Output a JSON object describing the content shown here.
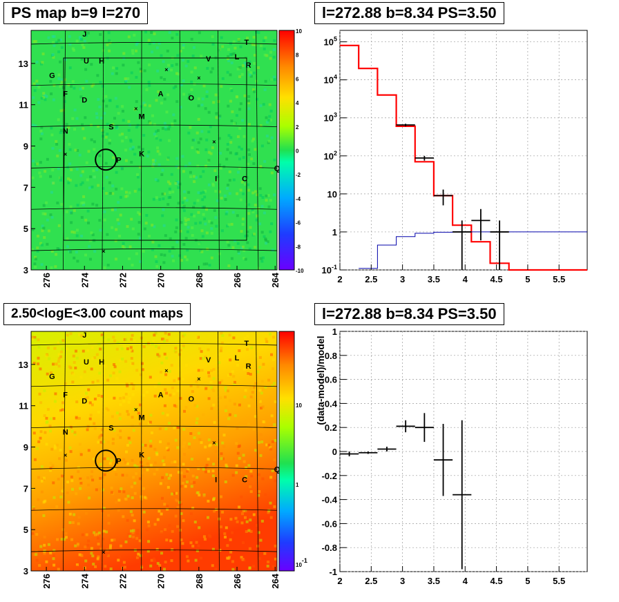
{
  "titles": {
    "ps_map": "PS map b=9 l=270",
    "spectrum": "l=272.88 b=8.34 PS=3.50",
    "count_map": "2.50<logE<3.00 count maps",
    "residual": "l=272.88 b=8.34 PS=3.50"
  },
  "colors": {
    "data": "#000000",
    "model": "#ff0000",
    "background": "#0000aa"
  },
  "chart_data": [
    {
      "type": "heatmap",
      "title": "PS map b=9 l=270",
      "x_ticks": [
        "276",
        "274",
        "272",
        "270",
        "268",
        "266",
        "264"
      ],
      "y_ticks": [
        "3",
        "5",
        "7",
        "9",
        "11",
        "13"
      ],
      "colorbar_ticks": [
        "10",
        "8",
        "6",
        "4",
        "2",
        "0",
        "-2",
        "-4",
        "-6",
        "-8",
        "-10"
      ],
      "zlim": [
        -10,
        10
      ],
      "source_labels": [
        {
          "t": "J",
          "l": 274.0,
          "b": 14.3
        },
        {
          "t": "T",
          "l": 265.5,
          "b": 13.9
        },
        {
          "t": "L",
          "l": 266.0,
          "b": 13.2
        },
        {
          "t": "U",
          "l": 273.9,
          "b": 13.0
        },
        {
          "t": "H",
          "l": 273.1,
          "b": 13.0
        },
        {
          "t": "V",
          "l": 267.5,
          "b": 13.1
        },
        {
          "t": "R",
          "l": 265.4,
          "b": 12.8
        },
        {
          "t": "G",
          "l": 275.7,
          "b": 12.3
        },
        {
          "t": "F",
          "l": 275.0,
          "b": 11.4
        },
        {
          "t": "D",
          "l": 274.0,
          "b": 11.1
        },
        {
          "t": "A",
          "l": 270.0,
          "b": 11.4
        },
        {
          "t": "O",
          "l": 268.4,
          "b": 11.2
        },
        {
          "t": "M",
          "l": 271.0,
          "b": 10.3
        },
        {
          "t": "S",
          "l": 272.6,
          "b": 9.8
        },
        {
          "t": "N",
          "l": 275.0,
          "b": 9.6
        },
        {
          "t": "K",
          "l": 271.0,
          "b": 8.5
        },
        {
          "t": "P",
          "l": 272.2,
          "b": 8.2
        },
        {
          "t": "Q",
          "l": 263.9,
          "b": 7.8
        },
        {
          "t": "I",
          "l": 267.1,
          "b": 7.3
        },
        {
          "t": "C",
          "l": 265.6,
          "b": 7.3
        }
      ],
      "crosses": [
        {
          "l": 269.7,
          "b": 12.7
        },
        {
          "l": 268.0,
          "b": 12.3
        },
        {
          "l": 271.3,
          "b": 10.8
        },
        {
          "l": 267.2,
          "b": 9.2
        },
        {
          "l": 275.0,
          "b": 8.6
        },
        {
          "l": 273.0,
          "b": 3.9
        }
      ],
      "ps_circle": {
        "l": 272.88,
        "b": 8.34
      }
    },
    {
      "type": "line",
      "title": "l=272.88 b=8.34 PS=3.50",
      "x_ticks": [
        "2",
        "2.5",
        "3",
        "3.5",
        "4",
        "4.5",
        "5",
        "5.5"
      ],
      "y_ticks": [
        "10^-1",
        "1",
        "10",
        "10^2",
        "10^3",
        "10^4",
        "10^5"
      ],
      "xlim": [
        2,
        5.95
      ],
      "ylim": [
        0.1,
        200000
      ],
      "y_scale": "log",
      "grid": true,
      "series": [
        {
          "role": "model",
          "bins": [
            [
              2.0,
              2.3,
              80000
            ],
            [
              2.3,
              2.6,
              20000
            ],
            [
              2.6,
              2.9,
              4000
            ],
            [
              2.9,
              3.2,
              600
            ],
            [
              3.2,
              3.5,
              70
            ],
            [
              3.5,
              3.8,
              9
            ],
            [
              3.8,
              4.1,
              1.5
            ],
            [
              4.1,
              4.4,
              0.55
            ],
            [
              4.4,
              4.7,
              0.15
            ],
            [
              4.7,
              5.95,
              0.1
            ]
          ]
        },
        {
          "role": "background",
          "bins": [
            [
              2.3,
              2.6,
              0.11
            ],
            [
              2.6,
              2.9,
              0.45
            ],
            [
              2.9,
              3.2,
              0.75
            ],
            [
              3.2,
              3.5,
              0.92
            ],
            [
              3.5,
              3.8,
              0.98
            ],
            [
              3.8,
              5.95,
              1.0
            ]
          ]
        },
        {
          "role": "data",
          "points": [
            {
              "x": 3.05,
              "y": 650,
              "x0": 2.9,
              "x1": 3.2,
              "y0": 600,
              "y1": 700
            },
            {
              "x": 3.35,
              "y": 88,
              "x0": 3.2,
              "x1": 3.5,
              "y0": 75,
              "y1": 100
            },
            {
              "x": 3.65,
              "y": 9,
              "x0": 3.5,
              "x1": 3.8,
              "y0": 5,
              "y1": 13
            },
            {
              "x": 3.95,
              "y": 1,
              "x0": 3.8,
              "x1": 4.1,
              "y0": 0.1,
              "y1": 2
            },
            {
              "x": 4.25,
              "y": 2,
              "x0": 4.1,
              "x1": 4.4,
              "y0": 0.6,
              "y1": 4
            },
            {
              "x": 4.55,
              "y": 1,
              "x0": 4.4,
              "x1": 4.7,
              "y0": 0.1,
              "y1": 2
            }
          ]
        }
      ]
    },
    {
      "type": "heatmap",
      "title": "2.50<logE<3.00 count maps",
      "x_ticks": [
        "276",
        "274",
        "272",
        "270",
        "268",
        "266",
        "264"
      ],
      "y_ticks": [
        "3",
        "5",
        "7",
        "9",
        "11",
        "13"
      ],
      "colorbar_ticks": [
        "10",
        "1",
        "10^-1"
      ],
      "z_scale": "log"
    },
    {
      "type": "scatter",
      "title": "l=272.88 b=8.34 PS=3.50",
      "ylabel": "(data-model)/model",
      "x_ticks": [
        "2",
        "2.5",
        "3",
        "3.5",
        "4",
        "4.5",
        "5",
        "5.5"
      ],
      "y_ticks": [
        "1",
        "0.8",
        "0.6",
        "0.4",
        "0.2",
        "0",
        "-0.2",
        "-0.4",
        "-0.6",
        "-0.8",
        "-1"
      ],
      "xlim": [
        2,
        5.95
      ],
      "ylim": [
        -1,
        1
      ],
      "grid": true,
      "points": [
        {
          "x": 2.15,
          "y": -0.02,
          "x0": 2.0,
          "x1": 2.3,
          "e": 0.02
        },
        {
          "x": 2.45,
          "y": -0.01,
          "x0": 2.3,
          "x1": 2.6,
          "e": 0.01
        },
        {
          "x": 2.75,
          "y": 0.02,
          "x0": 2.6,
          "x1": 2.9,
          "e": 0.02
        },
        {
          "x": 3.05,
          "y": 0.21,
          "x0": 2.9,
          "x1": 3.2,
          "e": 0.05
        },
        {
          "x": 3.35,
          "y": 0.2,
          "x0": 3.2,
          "x1": 3.5,
          "e": 0.12
        },
        {
          "x": 3.65,
          "y": -0.07,
          "x0": 3.5,
          "x1": 3.8,
          "e": 0.3
        },
        {
          "x": 3.95,
          "y": -0.36,
          "x0": 3.8,
          "x1": 4.1,
          "e": 0.62
        }
      ]
    }
  ]
}
